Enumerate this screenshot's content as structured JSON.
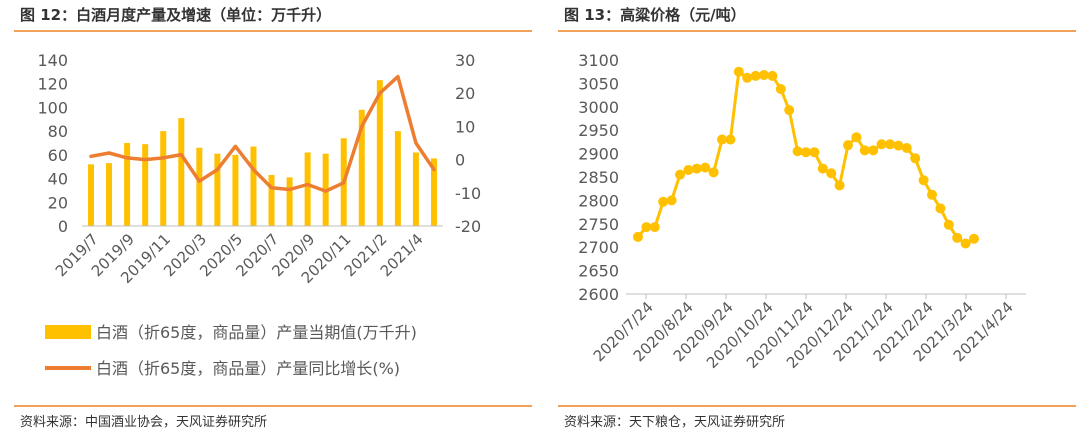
{
  "colors": {
    "gold": "#FFC000",
    "orange": "#ED7D31",
    "rule": "#F0A15A",
    "axis": "#BFBFBF",
    "text": "#595959"
  },
  "left": {
    "title": "图 12：白酒月度产量及增速（单位：万千升）",
    "source": "资料来源：中国酒业协会，天风证券研究所"
  },
  "right": {
    "title": "图 13：高粱价格（元/吨）",
    "source": "资料来源：天下粮仓，天风证券研究所"
  },
  "chart_data": [
    {
      "type": "bar+line",
      "title": "图 12：白酒月度产量及增速（单位：万千升）",
      "categories": [
        "2019/7",
        "2019/8",
        "2019/9",
        "2019/10",
        "2019/11",
        "2019/12",
        "2020/3",
        "2020/4",
        "2020/5",
        "2020/6",
        "2020/7",
        "2020/8",
        "2020/9",
        "2020/10",
        "2020/11",
        "2020/12",
        "2021/2",
        "2021/3",
        "2021/4",
        "2021/5"
      ],
      "x_tick_labels": [
        "2019/7",
        "2019/9",
        "2019/11",
        "2020/3",
        "2020/5",
        "2020/7",
        "2020/9",
        "2020/11",
        "2021/2",
        "2021/4"
      ],
      "series": [
        {
          "name": "白酒（折65度，商品量）产量当期值(万千升)",
          "type": "bar",
          "axis": "left",
          "values": [
            52,
            53,
            70,
            69,
            80,
            91,
            66,
            61,
            60,
            67,
            43,
            41,
            62,
            61,
            74,
            98,
            123,
            80,
            62,
            57
          ]
        },
        {
          "name": "白酒（折65度，商品量）产量同比增长(%)",
          "type": "line",
          "axis": "right",
          "values": [
            1,
            2,
            0.5,
            0,
            0.5,
            1.5,
            -6.5,
            -3,
            4,
            -3,
            -8.5,
            -9,
            -7.5,
            -9.5,
            -7,
            10,
            20,
            25,
            5,
            -3
          ]
        }
      ],
      "y_left": {
        "min": 0,
        "max": 140,
        "ticks": [
          0,
          20,
          40,
          60,
          80,
          100,
          120,
          140
        ]
      },
      "y_right": {
        "min": -20,
        "max": 30,
        "ticks": [
          -20,
          -10,
          0,
          10,
          20,
          30
        ]
      }
    },
    {
      "type": "line",
      "title": "图 13：高粱价格（元/吨）",
      "x_tick_labels": [
        "2020/7/24",
        "2020/8/24",
        "2020/9/24",
        "2020/10/24",
        "2020/11/24",
        "2020/12/24",
        "2021/1/24",
        "2021/2/24",
        "2021/3/24",
        "2021/4/24"
      ],
      "y": {
        "min": 2600,
        "max": 3100,
        "ticks": [
          2600,
          2650,
          2700,
          2750,
          2800,
          2850,
          2900,
          2950,
          3000,
          3050,
          3100
        ]
      },
      "x_range": [
        0,
        39
      ],
      "points": [
        [
          0,
          2722
        ],
        [
          1,
          2743
        ],
        [
          2,
          2743
        ],
        [
          3,
          2797
        ],
        [
          4,
          2800
        ],
        [
          5,
          2855
        ],
        [
          6,
          2865
        ],
        [
          7,
          2868
        ],
        [
          8,
          2870
        ],
        [
          9,
          2860
        ],
        [
          10,
          2930
        ],
        [
          11,
          2930
        ],
        [
          12,
          3075
        ],
        [
          13,
          3062
        ],
        [
          14,
          3066
        ],
        [
          15,
          3068
        ],
        [
          16,
          3066
        ],
        [
          17,
          3038
        ],
        [
          18,
          2993
        ],
        [
          19,
          2905
        ],
        [
          20,
          2903
        ],
        [
          21,
          2903
        ],
        [
          22,
          2868
        ],
        [
          23,
          2858
        ],
        [
          24,
          2832
        ],
        [
          25,
          2918
        ],
        [
          26,
          2935
        ],
        [
          27,
          2907
        ],
        [
          28,
          2907
        ],
        [
          29,
          2920
        ],
        [
          30,
          2920
        ],
        [
          31,
          2917
        ],
        [
          32,
          2912
        ],
        [
          33,
          2890
        ],
        [
          34,
          2843
        ],
        [
          35,
          2812
        ],
        [
          36,
          2783
        ],
        [
          37,
          2748
        ],
        [
          38,
          2720
        ],
        [
          39,
          2708
        ],
        [
          40,
          2718
        ]
      ]
    }
  ]
}
